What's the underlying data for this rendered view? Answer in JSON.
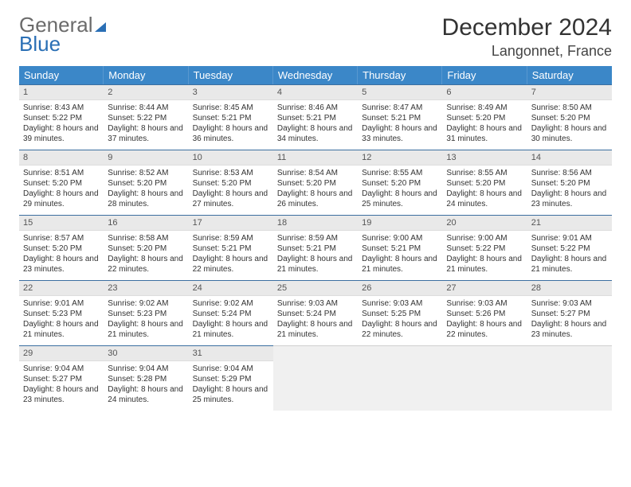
{
  "brand": {
    "part1": "General",
    "part2": "Blue"
  },
  "title": "December 2024",
  "location": "Langonnet, France",
  "colors": {
    "header_bg": "#3b87c8",
    "header_text": "#ffffff",
    "daynum_bg": "#e9e9e9",
    "cell_border": "#3b6fa0",
    "brand_gray": "#6b6b6b",
    "brand_blue": "#2a6fb5"
  },
  "day_names": [
    "Sunday",
    "Monday",
    "Tuesday",
    "Wednesday",
    "Thursday",
    "Friday",
    "Saturday"
  ],
  "weeks": [
    [
      {
        "n": "1",
        "sr": "Sunrise: 8:43 AM",
        "ss": "Sunset: 5:22 PM",
        "dl": "Daylight: 8 hours and 39 minutes."
      },
      {
        "n": "2",
        "sr": "Sunrise: 8:44 AM",
        "ss": "Sunset: 5:22 PM",
        "dl": "Daylight: 8 hours and 37 minutes."
      },
      {
        "n": "3",
        "sr": "Sunrise: 8:45 AM",
        "ss": "Sunset: 5:21 PM",
        "dl": "Daylight: 8 hours and 36 minutes."
      },
      {
        "n": "4",
        "sr": "Sunrise: 8:46 AM",
        "ss": "Sunset: 5:21 PM",
        "dl": "Daylight: 8 hours and 34 minutes."
      },
      {
        "n": "5",
        "sr": "Sunrise: 8:47 AM",
        "ss": "Sunset: 5:21 PM",
        "dl": "Daylight: 8 hours and 33 minutes."
      },
      {
        "n": "6",
        "sr": "Sunrise: 8:49 AM",
        "ss": "Sunset: 5:20 PM",
        "dl": "Daylight: 8 hours and 31 minutes."
      },
      {
        "n": "7",
        "sr": "Sunrise: 8:50 AM",
        "ss": "Sunset: 5:20 PM",
        "dl": "Daylight: 8 hours and 30 minutes."
      }
    ],
    [
      {
        "n": "8",
        "sr": "Sunrise: 8:51 AM",
        "ss": "Sunset: 5:20 PM",
        "dl": "Daylight: 8 hours and 29 minutes."
      },
      {
        "n": "9",
        "sr": "Sunrise: 8:52 AM",
        "ss": "Sunset: 5:20 PM",
        "dl": "Daylight: 8 hours and 28 minutes."
      },
      {
        "n": "10",
        "sr": "Sunrise: 8:53 AM",
        "ss": "Sunset: 5:20 PM",
        "dl": "Daylight: 8 hours and 27 minutes."
      },
      {
        "n": "11",
        "sr": "Sunrise: 8:54 AM",
        "ss": "Sunset: 5:20 PM",
        "dl": "Daylight: 8 hours and 26 minutes."
      },
      {
        "n": "12",
        "sr": "Sunrise: 8:55 AM",
        "ss": "Sunset: 5:20 PM",
        "dl": "Daylight: 8 hours and 25 minutes."
      },
      {
        "n": "13",
        "sr": "Sunrise: 8:55 AM",
        "ss": "Sunset: 5:20 PM",
        "dl": "Daylight: 8 hours and 24 minutes."
      },
      {
        "n": "14",
        "sr": "Sunrise: 8:56 AM",
        "ss": "Sunset: 5:20 PM",
        "dl": "Daylight: 8 hours and 23 minutes."
      }
    ],
    [
      {
        "n": "15",
        "sr": "Sunrise: 8:57 AM",
        "ss": "Sunset: 5:20 PM",
        "dl": "Daylight: 8 hours and 23 minutes."
      },
      {
        "n": "16",
        "sr": "Sunrise: 8:58 AM",
        "ss": "Sunset: 5:20 PM",
        "dl": "Daylight: 8 hours and 22 minutes."
      },
      {
        "n": "17",
        "sr": "Sunrise: 8:59 AM",
        "ss": "Sunset: 5:21 PM",
        "dl": "Daylight: 8 hours and 22 minutes."
      },
      {
        "n": "18",
        "sr": "Sunrise: 8:59 AM",
        "ss": "Sunset: 5:21 PM",
        "dl": "Daylight: 8 hours and 21 minutes."
      },
      {
        "n": "19",
        "sr": "Sunrise: 9:00 AM",
        "ss": "Sunset: 5:21 PM",
        "dl": "Daylight: 8 hours and 21 minutes."
      },
      {
        "n": "20",
        "sr": "Sunrise: 9:00 AM",
        "ss": "Sunset: 5:22 PM",
        "dl": "Daylight: 8 hours and 21 minutes."
      },
      {
        "n": "21",
        "sr": "Sunrise: 9:01 AM",
        "ss": "Sunset: 5:22 PM",
        "dl": "Daylight: 8 hours and 21 minutes."
      }
    ],
    [
      {
        "n": "22",
        "sr": "Sunrise: 9:01 AM",
        "ss": "Sunset: 5:23 PM",
        "dl": "Daylight: 8 hours and 21 minutes."
      },
      {
        "n": "23",
        "sr": "Sunrise: 9:02 AM",
        "ss": "Sunset: 5:23 PM",
        "dl": "Daylight: 8 hours and 21 minutes."
      },
      {
        "n": "24",
        "sr": "Sunrise: 9:02 AM",
        "ss": "Sunset: 5:24 PM",
        "dl": "Daylight: 8 hours and 21 minutes."
      },
      {
        "n": "25",
        "sr": "Sunrise: 9:03 AM",
        "ss": "Sunset: 5:24 PM",
        "dl": "Daylight: 8 hours and 21 minutes."
      },
      {
        "n": "26",
        "sr": "Sunrise: 9:03 AM",
        "ss": "Sunset: 5:25 PM",
        "dl": "Daylight: 8 hours and 22 minutes."
      },
      {
        "n": "27",
        "sr": "Sunrise: 9:03 AM",
        "ss": "Sunset: 5:26 PM",
        "dl": "Daylight: 8 hours and 22 minutes."
      },
      {
        "n": "28",
        "sr": "Sunrise: 9:03 AM",
        "ss": "Sunset: 5:27 PM",
        "dl": "Daylight: 8 hours and 23 minutes."
      }
    ],
    [
      {
        "n": "29",
        "sr": "Sunrise: 9:04 AM",
        "ss": "Sunset: 5:27 PM",
        "dl": "Daylight: 8 hours and 23 minutes."
      },
      {
        "n": "30",
        "sr": "Sunrise: 9:04 AM",
        "ss": "Sunset: 5:28 PM",
        "dl": "Daylight: 8 hours and 24 minutes."
      },
      {
        "n": "31",
        "sr": "Sunrise: 9:04 AM",
        "ss": "Sunset: 5:29 PM",
        "dl": "Daylight: 8 hours and 25 minutes."
      },
      null,
      null,
      null,
      null
    ]
  ]
}
